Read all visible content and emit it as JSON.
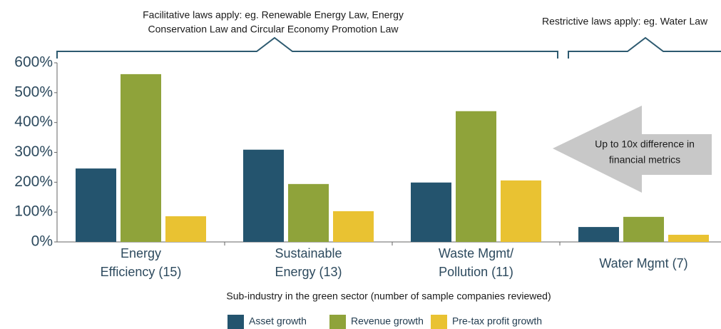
{
  "chart_data": {
    "type": "bar",
    "annotations": [
      {
        "lines": [
          "Facilitative laws apply: eg. Renewable Energy Law, Energy",
          "Conservation Law and Circular Economy Promotion Law"
        ]
      },
      {
        "lines": [
          "Restrictive laws apply: eg. Water Law"
        ]
      },
      {
        "lines": [
          "Up to 10x difference in",
          "financial metrics"
        ]
      }
    ],
    "categories": [
      [
        "Energy",
        "Efficiency (15)"
      ],
      [
        "Sustainable",
        "Energy (13)"
      ],
      [
        "Waste Mgmt/",
        "Pollution (11)"
      ],
      [
        "Water Mgmt (7)"
      ]
    ],
    "x_label": "Sub-industry in the green sector (number of sample companies reviewed)",
    "series": [
      {
        "name": "Asset growth",
        "color": "#24546e",
        "values": [
          246,
          309,
          199,
          50
        ]
      },
      {
        "name": "Revenue growth",
        "color": "#8fa33a",
        "values": [
          562,
          194,
          438,
          84
        ]
      },
      {
        "name": "Pre-tax profit growth",
        "color": "#e9c232",
        "values": [
          86,
          103,
          206,
          24
        ]
      }
    ],
    "ylim": [
      0,
      600
    ],
    "yticks": [
      {
        "value": 0,
        "label": "0%"
      },
      {
        "value": 100,
        "label": "100%"
      },
      {
        "value": 200,
        "label": "200%"
      },
      {
        "value": 300,
        "label": "300%"
      },
      {
        "value": 400,
        "label": "400%"
      },
      {
        "value": 500,
        "label": "500%"
      },
      {
        "value": 600,
        "label": "600%"
      }
    ],
    "legend": "bottom"
  }
}
